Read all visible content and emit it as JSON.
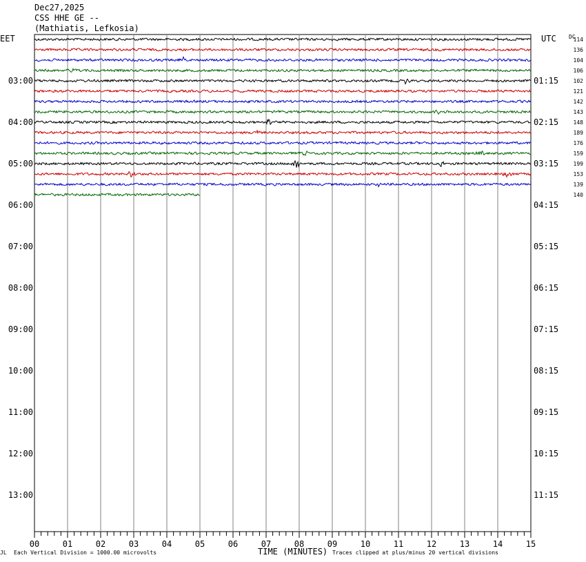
{
  "header": {
    "date": "Dec27,2025",
    "station": "CSS HHE GE --",
    "location": "(Mathiatis, Lefkosia)"
  },
  "left_axis_title": "EET",
  "right_axis_title": "UTC",
  "dc_title": "DC",
  "footer": {
    "scale_note": "Each Vertical Division = 1000.00 microvolts",
    "x_title": "TIME (MINUTES)",
    "clip_note": "Traces clipped at plus/minus 20 vertical divisions",
    "corner_mark": "JL"
  },
  "colors": {
    "trace_cycle": [
      "#000000",
      "#cc0000",
      "#0000cc",
      "#006600"
    ],
    "grid": "#808080"
  },
  "chart_data": {
    "type": "line",
    "title": "CSS HHE GE --",
    "xlabel": "TIME (MINUTES)",
    "x_ticks": [
      "00",
      "01",
      "02",
      "03",
      "04",
      "05",
      "06",
      "07",
      "08",
      "09",
      "10",
      "11",
      "12",
      "13",
      "14",
      "15"
    ],
    "xlim": [
      0,
      15
    ],
    "left_hour_labels": [
      "03:00",
      "04:00",
      "05:00",
      "06:00",
      "07:00",
      "08:00",
      "09:00",
      "10:00",
      "11:00",
      "12:00",
      "13:00"
    ],
    "right_hour_labels": [
      "01:15",
      "02:15",
      "03:15",
      "04:15",
      "05:15",
      "06:15",
      "07:15",
      "08:15",
      "09:15",
      "10:15",
      "11:15"
    ],
    "rows_total": 48,
    "dc_offsets": [
      "114",
      "136",
      "104",
      "106",
      "102",
      "121",
      "142",
      "143",
      "148",
      "189",
      "176",
      "159",
      "199",
      "153",
      "139",
      "140"
    ],
    "traces": [
      {
        "end_minute": 15,
        "events": []
      },
      {
        "end_minute": 15,
        "events": []
      },
      {
        "end_minute": 15,
        "events": [
          {
            "minute": 4.5,
            "amp": 4
          }
        ]
      },
      {
        "end_minute": 15,
        "events": [
          {
            "minute": 1.1,
            "amp": 3
          }
        ]
      },
      {
        "end_minute": 15,
        "events": [
          {
            "minute": 11.2,
            "amp": 4
          },
          {
            "minute": 11.8,
            "amp": 3
          }
        ]
      },
      {
        "end_minute": 15,
        "events": []
      },
      {
        "end_minute": 15,
        "events": []
      },
      {
        "end_minute": 15,
        "events": [
          {
            "minute": 7.2,
            "amp": 3
          },
          {
            "minute": 12.2,
            "amp": 3
          }
        ]
      },
      {
        "end_minute": 15,
        "events": [
          {
            "minute": 7.1,
            "amp": 8
          }
        ]
      },
      {
        "end_minute": 15,
        "events": [
          {
            "minute": 6.7,
            "amp": 4
          }
        ]
      },
      {
        "end_minute": 15,
        "events": []
      },
      {
        "end_minute": 15,
        "events": [
          {
            "minute": 8.2,
            "amp": 5
          },
          {
            "minute": 13.5,
            "amp": 6
          }
        ]
      },
      {
        "end_minute": 15,
        "events": [
          {
            "minute": 7.9,
            "amp": 10
          },
          {
            "minute": 12.3,
            "amp": 4
          }
        ]
      },
      {
        "end_minute": 15,
        "events": [
          {
            "minute": 2.9,
            "amp": 9
          },
          {
            "minute": 14.3,
            "amp": 5
          }
        ]
      },
      {
        "end_minute": 15,
        "events": [
          {
            "minute": 10.4,
            "amp": 4
          }
        ]
      },
      {
        "end_minute": 5,
        "events": []
      }
    ]
  }
}
